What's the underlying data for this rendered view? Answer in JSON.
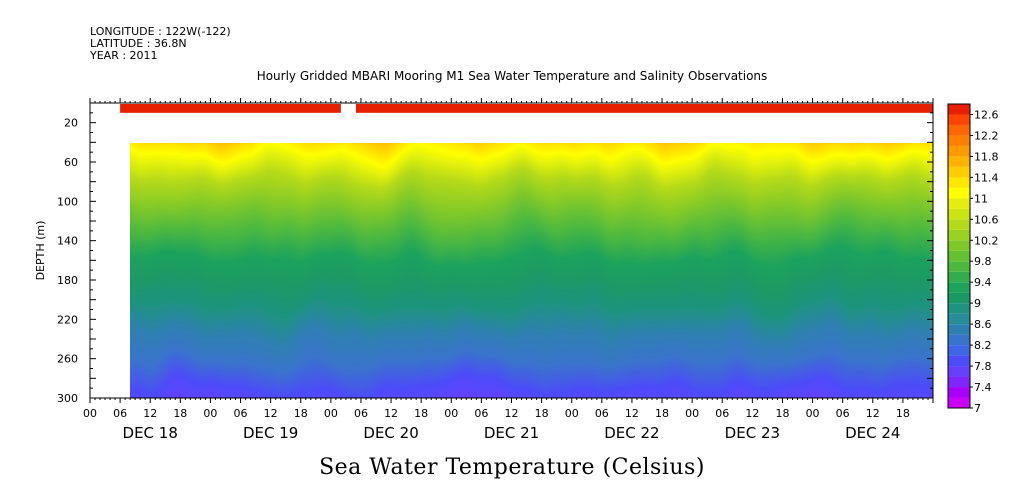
{
  "header": {
    "longitude": "LONGITUDE : 122W(-122)",
    "latitude": "LATITUDE : 36.8N",
    "year": "YEAR : 2011"
  },
  "chart_data": {
    "type": "heatmap",
    "title": "Hourly Gridded MBARI Mooring M1 Sea Water Temperature and Salinity Observations",
    "xlabel": "",
    "ylabel": "DEPTH (m)",
    "colorbar_label": "Sea Water Temperature (Celsius)",
    "x_range_hours": [
      0,
      168
    ],
    "data_start_hour": 6,
    "hour_ticks": [
      "00",
      "06",
      "12",
      "18",
      "00",
      "06",
      "12",
      "18",
      "00",
      "06",
      "12",
      "18",
      "00",
      "06",
      "12",
      "18",
      "00",
      "06",
      "12",
      "18",
      "00",
      "06",
      "12",
      "18",
      "00",
      "06",
      "12",
      "18"
    ],
    "date_labels": [
      "DEC 18",
      "DEC 19",
      "DEC 20",
      "DEC 21",
      "DEC 22",
      "DEC 23",
      "DEC 24"
    ],
    "ylim": [
      300,
      0
    ],
    "y_ticks": [
      "20",
      "60",
      "100",
      "140",
      "180",
      "220",
      "260",
      "300"
    ],
    "top_band": {
      "depth_range": [
        1,
        10
      ],
      "value": 12.6,
      "gap_hours": [
        50,
        53
      ]
    },
    "depth_profile": [
      {
        "depth": 40,
        "value": 12.2
      },
      {
        "depth": 60,
        "value": 11.6
      },
      {
        "depth": 80,
        "value": 11.0
      },
      {
        "depth": 100,
        "value": 10.4
      },
      {
        "depth": 120,
        "value": 10.0
      },
      {
        "depth": 140,
        "value": 9.6
      },
      {
        "depth": 160,
        "value": 9.2
      },
      {
        "depth": 180,
        "value": 9.0
      },
      {
        "depth": 200,
        "value": 8.8
      },
      {
        "depth": 220,
        "value": 8.5
      },
      {
        "depth": 240,
        "value": 8.2
      },
      {
        "depth": 260,
        "value": 7.9
      },
      {
        "depth": 280,
        "value": 7.6
      },
      {
        "depth": 300,
        "value": 7.3
      }
    ],
    "colorbar": {
      "levels": [
        7,
        7.2,
        7.4,
        7.6,
        7.8,
        8,
        8.2,
        8.4,
        8.6,
        8.8,
        9,
        9.2,
        9.4,
        9.6,
        9.8,
        10,
        10.2,
        10.4,
        10.6,
        10.8,
        11,
        11.2,
        11.4,
        11.6,
        11.8,
        12,
        12.2,
        12.4,
        12.6,
        12.8
      ],
      "labels": [
        "7",
        "7.4",
        "7.8",
        "8.2",
        "8.6",
        "9",
        "9.4",
        "9.8",
        "10.2",
        "10.6",
        "11",
        "11.4",
        "11.8",
        "12.2",
        "12.6"
      ],
      "colors": [
        "#cc00ff",
        "#a800ff",
        "#7f26ff",
        "#6640ff",
        "#4c4cf8",
        "#4066e8",
        "#3a73cc",
        "#2f80b2",
        "#298c99",
        "#1f9380",
        "#1a9966",
        "#1fa35c",
        "#33ad4c",
        "#4cb840",
        "#66c033",
        "#80c82a",
        "#99d124",
        "#b3d91a",
        "#cce314",
        "#e6ec0e",
        "#ffff00",
        "#ffe600",
        "#ffcc00",
        "#ffb300",
        "#ff9900",
        "#ff8000",
        "#ff6600",
        "#ff4400",
        "#e62000",
        "#b30000"
      ]
    }
  }
}
